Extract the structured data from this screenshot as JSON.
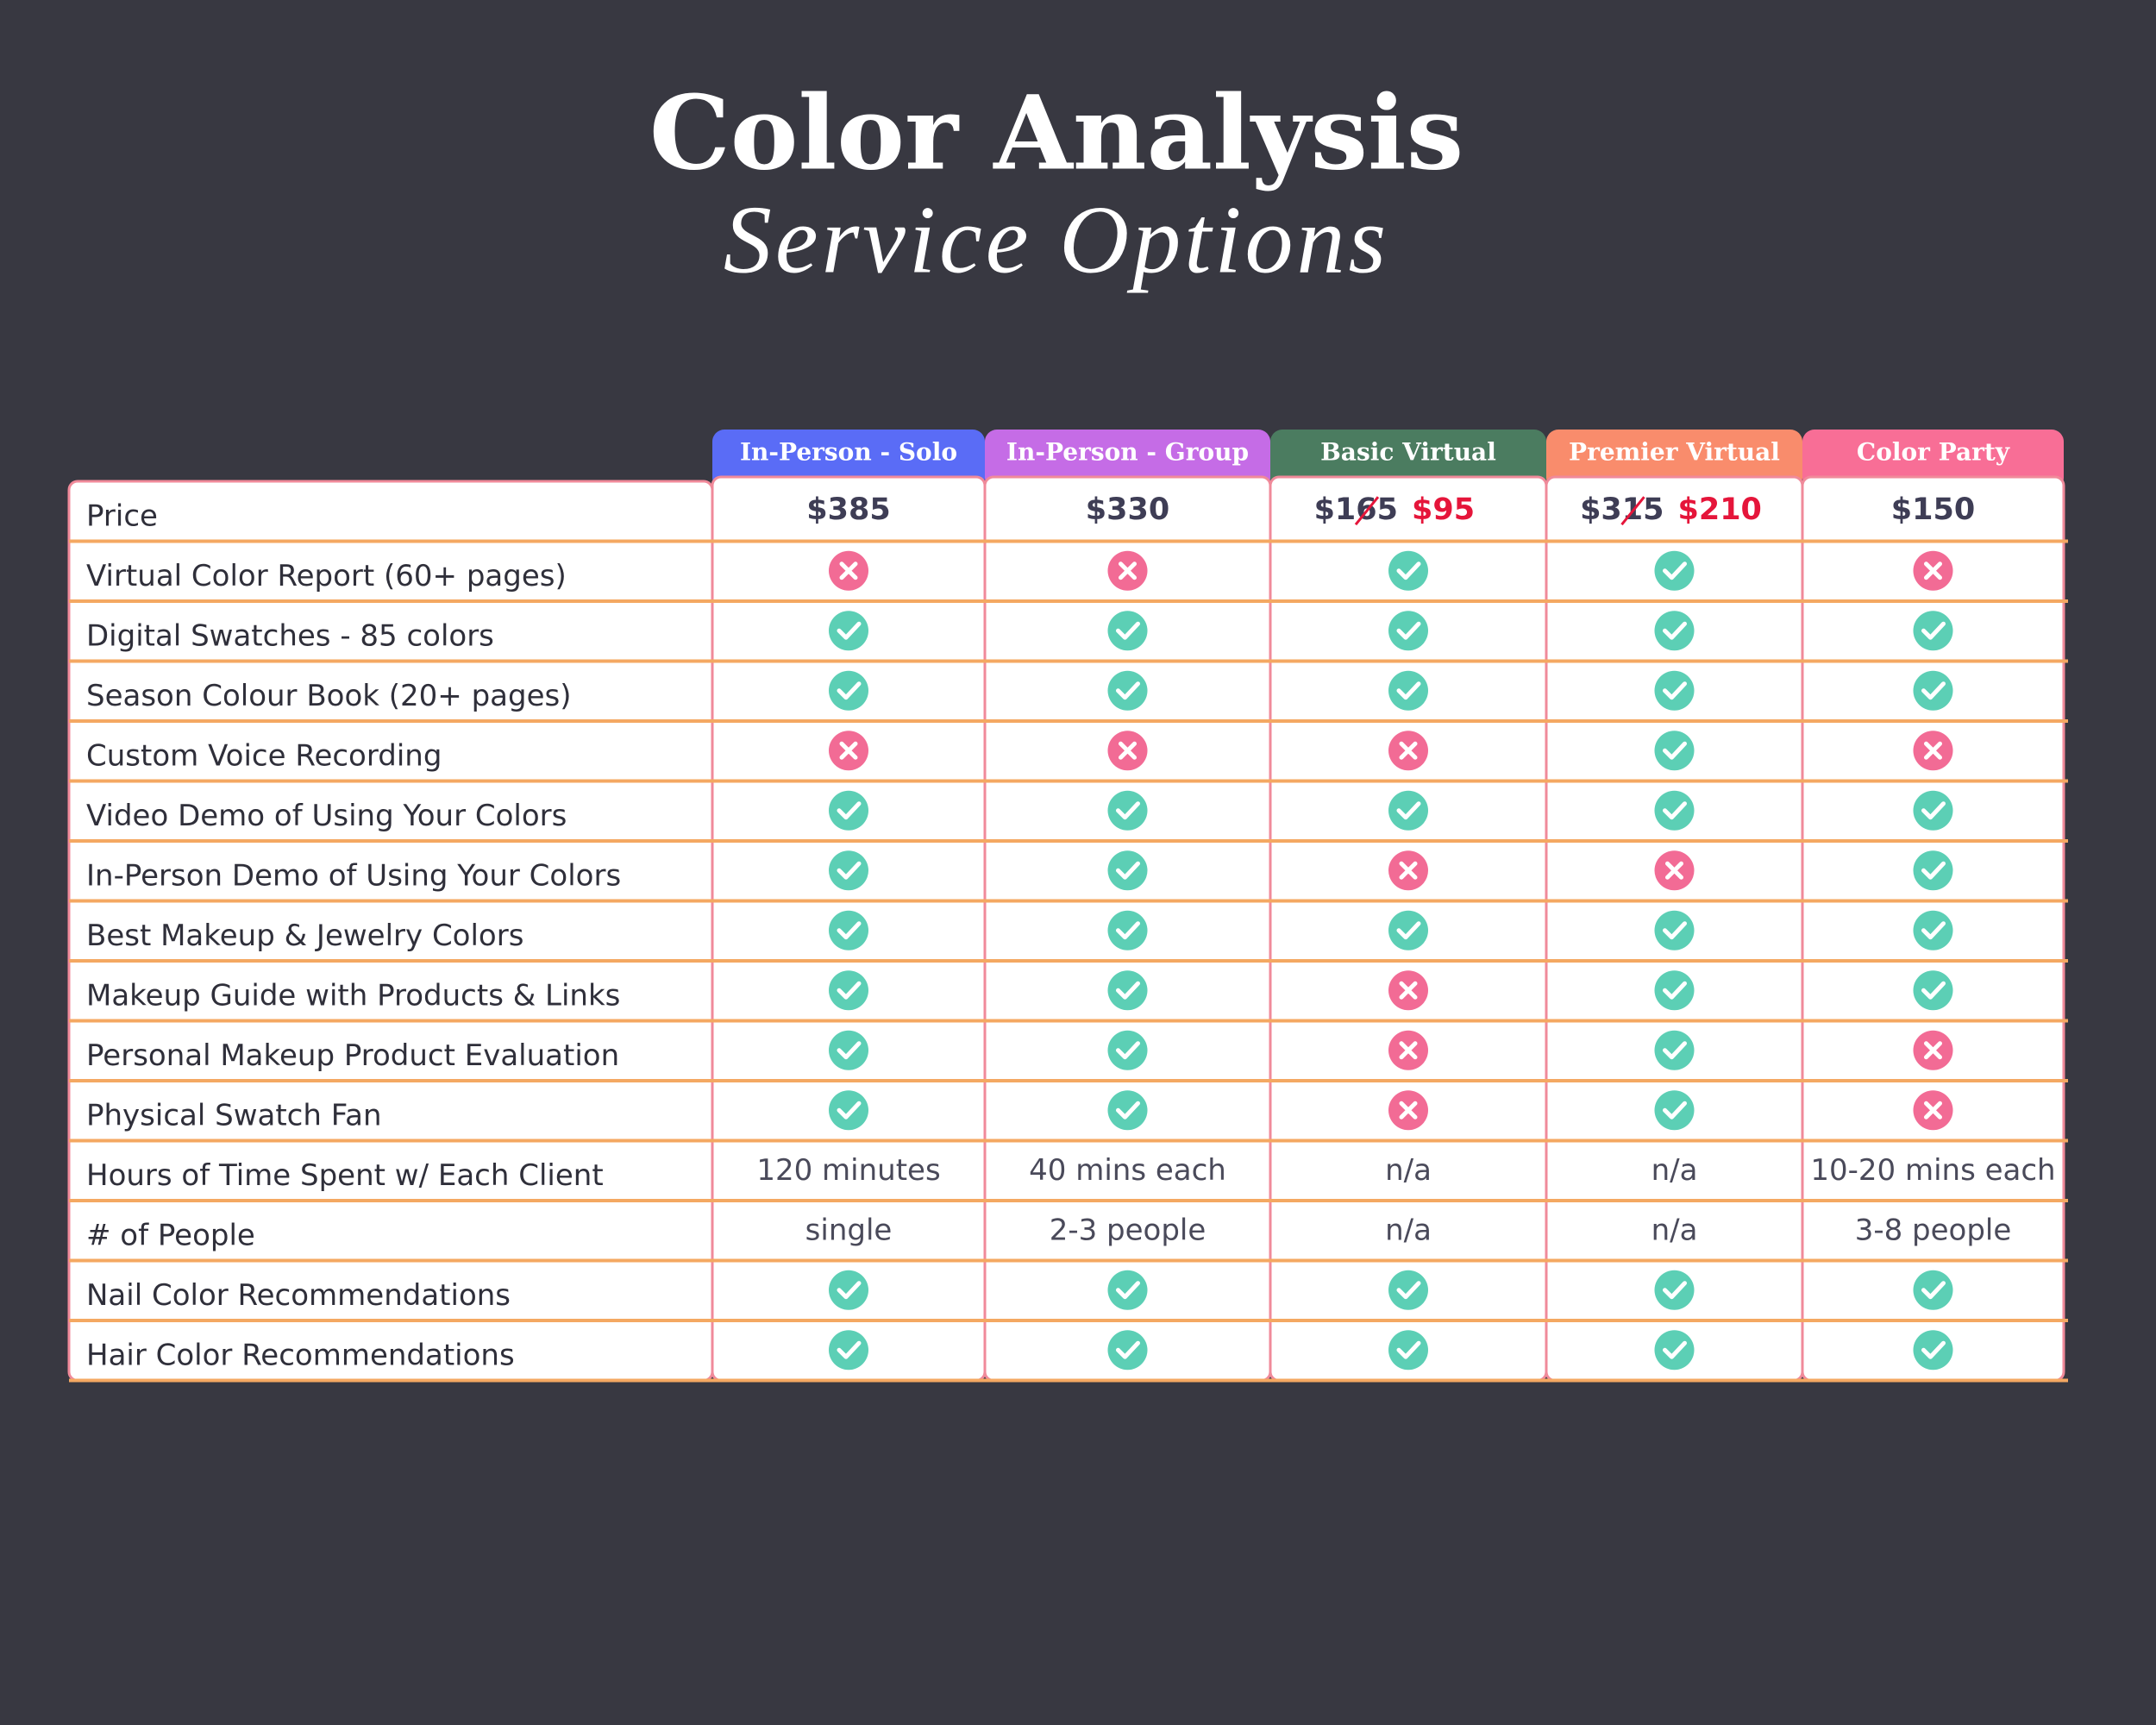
{
  "header": {
    "title": "Color Analysis",
    "subtitle": "Service Options"
  },
  "table": {
    "columns": [
      {
        "name": "In-Person - Solo",
        "color": "#5a6cf6"
      },
      {
        "name": "In-Person - Group",
        "color": "#c56ce6"
      },
      {
        "name": "Basic Virtual",
        "color": "#4b7c60"
      },
      {
        "name": "Premier Virtual",
        "color": "#f98c6c"
      },
      {
        "name": "Color Party",
        "color": "#f86e96"
      }
    ],
    "rows": [
      {
        "label": "Price",
        "cells": [
          {
            "price": "$385"
          },
          {
            "price": "$330"
          },
          {
            "old": "$165",
            "price": "$95"
          },
          {
            "old": "$315",
            "price": "$210"
          },
          {
            "price": "$150"
          }
        ]
      },
      {
        "label": "Virtual Color Report (60+ pages)",
        "cells": [
          false,
          false,
          true,
          true,
          false
        ]
      },
      {
        "label": "Digital Swatches - 85 colors",
        "cells": [
          true,
          true,
          true,
          true,
          true
        ]
      },
      {
        "label": "Season Colour Book (20+ pages)",
        "cells": [
          true,
          true,
          true,
          true,
          true
        ]
      },
      {
        "label": "Custom Voice Recording",
        "cells": [
          false,
          false,
          false,
          true,
          false
        ]
      },
      {
        "label": "Video Demo of Using Your Colors",
        "cells": [
          true,
          true,
          true,
          true,
          true
        ]
      },
      {
        "label": "In-Person Demo of Using Your Colors",
        "cells": [
          true,
          true,
          false,
          false,
          true
        ]
      },
      {
        "label": "Best Makeup & Jewelry Colors",
        "cells": [
          true,
          true,
          true,
          true,
          true
        ]
      },
      {
        "label": "Makeup Guide with Products & Links",
        "cells": [
          true,
          true,
          false,
          true,
          true
        ]
      },
      {
        "label": "Personal Makeup Product Evaluation",
        "cells": [
          true,
          true,
          false,
          true,
          false
        ]
      },
      {
        "label": "Physical Swatch Fan",
        "cells": [
          true,
          true,
          false,
          true,
          false
        ]
      },
      {
        "label": "Hours of Time Spent w/ Each Client",
        "cells": [
          "120 minutes",
          "40 mins each",
          "n/a",
          "n/a",
          "10-20 mins each"
        ]
      },
      {
        "label": "# of People",
        "cells": [
          "single",
          "2-3 people",
          "n/a",
          "n/a",
          "3-8 people"
        ]
      },
      {
        "label": "Nail Color Recommendations",
        "cells": [
          true,
          true,
          true,
          true,
          true
        ]
      },
      {
        "label": "Hair Color Recommendations",
        "cells": [
          true,
          true,
          true,
          true,
          true
        ]
      }
    ]
  }
}
